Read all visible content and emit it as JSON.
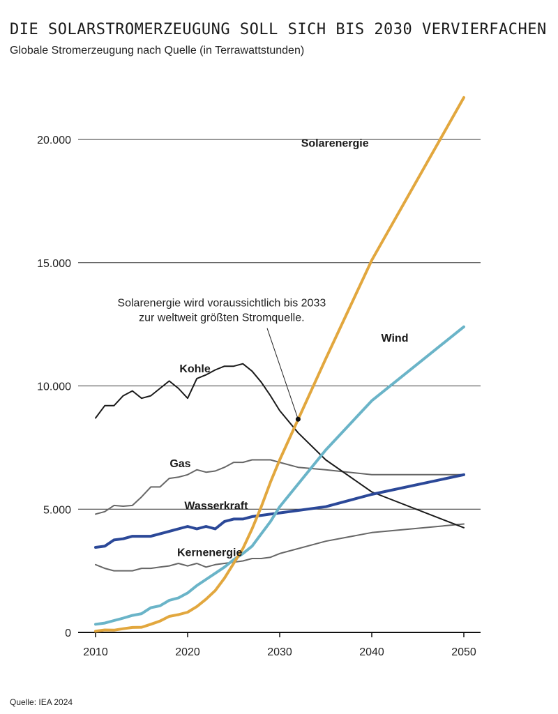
{
  "header": {
    "title": "DIE SOLARSTROMERZEUGUNG SOLL SICH BIS 2030 VERVIERFACHEN",
    "subtitle": "Globale Stromerzeugung nach Quelle (in Terrawattstunden)"
  },
  "footer": {
    "source": "Quelle: IEA 2024"
  },
  "chart_data": {
    "type": "line",
    "title": "DIE SOLARSTROMERZEUGUNG SOLL SICH BIS 2030 VERVIERFACHEN",
    "subtitle": "Globale Stromerzeugung nach Quelle (in Terrawattstunden)",
    "xlabel": "",
    "ylabel": "",
    "xlim": [
      2010,
      2050
    ],
    "ylim": [
      0,
      22000
    ],
    "x_ticks": [
      2010,
      2020,
      2030,
      2040,
      2050
    ],
    "y_ticks": [
      0,
      5000,
      10000,
      15000,
      20000
    ],
    "y_tick_labels": [
      "0",
      "5.000",
      "10.000",
      "15.000",
      "20.000"
    ],
    "grid": "horizontal",
    "series": [
      {
        "name": "Solarenergie",
        "color": "#E2A73E",
        "width": 4,
        "points": [
          [
            2010,
            50
          ],
          [
            2011,
            100
          ],
          [
            2012,
            90
          ],
          [
            2013,
            150
          ],
          [
            2014,
            200
          ],
          [
            2015,
            210
          ],
          [
            2016,
            330
          ],
          [
            2017,
            460
          ],
          [
            2018,
            650
          ],
          [
            2019,
            720
          ],
          [
            2020,
            820
          ],
          [
            2021,
            1050
          ],
          [
            2022,
            1350
          ],
          [
            2023,
            1700
          ],
          [
            2024,
            2200
          ],
          [
            2025,
            2800
          ],
          [
            2026,
            3400
          ],
          [
            2027,
            4200
          ],
          [
            2028,
            5100
          ],
          [
            2029,
            6100
          ],
          [
            2030,
            7000
          ],
          [
            2035,
            11100
          ],
          [
            2040,
            15100
          ],
          [
            2050,
            21700
          ]
        ]
      },
      {
        "name": "Wind",
        "color": "#6AB4C8",
        "width": 4,
        "points": [
          [
            2010,
            330
          ],
          [
            2011,
            380
          ],
          [
            2012,
            480
          ],
          [
            2013,
            580
          ],
          [
            2014,
            690
          ],
          [
            2015,
            760
          ],
          [
            2016,
            1000
          ],
          [
            2017,
            1080
          ],
          [
            2018,
            1300
          ],
          [
            2019,
            1400
          ],
          [
            2020,
            1600
          ],
          [
            2021,
            1900
          ],
          [
            2022,
            2150
          ],
          [
            2023,
            2400
          ],
          [
            2024,
            2650
          ],
          [
            2025,
            2950
          ],
          [
            2026,
            3200
          ],
          [
            2027,
            3500
          ],
          [
            2028,
            4000
          ],
          [
            2029,
            4500
          ],
          [
            2030,
            5100
          ],
          [
            2035,
            7400
          ],
          [
            2040,
            9400
          ],
          [
            2050,
            12400
          ]
        ]
      },
      {
        "name": "Kohle",
        "color": "#1a1a1a",
        "width": 2,
        "points": [
          [
            2010,
            8700
          ],
          [
            2011,
            9200
          ],
          [
            2012,
            9200
          ],
          [
            2013,
            9600
          ],
          [
            2014,
            9800
          ],
          [
            2015,
            9500
          ],
          [
            2016,
            9600
          ],
          [
            2017,
            9900
          ],
          [
            2018,
            10200
          ],
          [
            2019,
            9900
          ],
          [
            2020,
            9500
          ],
          [
            2021,
            10300
          ],
          [
            2022,
            10450
          ],
          [
            2023,
            10650
          ],
          [
            2024,
            10800
          ],
          [
            2025,
            10800
          ],
          [
            2026,
            10900
          ],
          [
            2027,
            10600
          ],
          [
            2028,
            10150
          ],
          [
            2029,
            9600
          ],
          [
            2030,
            9000
          ],
          [
            2032,
            8100
          ],
          [
            2035,
            7000
          ],
          [
            2040,
            5700
          ],
          [
            2050,
            4250
          ]
        ]
      },
      {
        "name": "Gas",
        "color": "#666666",
        "width": 2,
        "points": [
          [
            2010,
            4800
          ],
          [
            2011,
            4900
          ],
          [
            2012,
            5150
          ],
          [
            2013,
            5120
          ],
          [
            2014,
            5150
          ],
          [
            2015,
            5500
          ],
          [
            2016,
            5900
          ],
          [
            2017,
            5900
          ],
          [
            2018,
            6250
          ],
          [
            2019,
            6300
          ],
          [
            2020,
            6400
          ],
          [
            2021,
            6600
          ],
          [
            2022,
            6500
          ],
          [
            2023,
            6550
          ],
          [
            2024,
            6700
          ],
          [
            2025,
            6900
          ],
          [
            2026,
            6900
          ],
          [
            2027,
            7000
          ],
          [
            2028,
            7000
          ],
          [
            2029,
            7000
          ],
          [
            2030,
            6900
          ],
          [
            2032,
            6700
          ],
          [
            2035,
            6600
          ],
          [
            2040,
            6400
          ],
          [
            2050,
            6400
          ]
        ]
      },
      {
        "name": "Wasserkraft",
        "color": "#2B4898",
        "width": 4,
        "points": [
          [
            2010,
            3450
          ],
          [
            2011,
            3500
          ],
          [
            2012,
            3750
          ],
          [
            2013,
            3800
          ],
          [
            2014,
            3900
          ],
          [
            2015,
            3900
          ],
          [
            2016,
            3900
          ],
          [
            2017,
            4000
          ],
          [
            2018,
            4100
          ],
          [
            2019,
            4200
          ],
          [
            2020,
            4300
          ],
          [
            2021,
            4200
          ],
          [
            2022,
            4300
          ],
          [
            2023,
            4200
          ],
          [
            2024,
            4500
          ],
          [
            2025,
            4600
          ],
          [
            2026,
            4600
          ],
          [
            2027,
            4700
          ],
          [
            2028,
            4750
          ],
          [
            2029,
            4800
          ],
          [
            2030,
            4850
          ],
          [
            2035,
            5100
          ],
          [
            2040,
            5600
          ],
          [
            2050,
            6400
          ]
        ]
      },
      {
        "name": "Kernenergie",
        "color": "#666666",
        "width": 2,
        "points": [
          [
            2010,
            2750
          ],
          [
            2011,
            2600
          ],
          [
            2012,
            2500
          ],
          [
            2013,
            2500
          ],
          [
            2014,
            2500
          ],
          [
            2015,
            2600
          ],
          [
            2016,
            2600
          ],
          [
            2017,
            2650
          ],
          [
            2018,
            2700
          ],
          [
            2019,
            2800
          ],
          [
            2020,
            2700
          ],
          [
            2021,
            2800
          ],
          [
            2022,
            2650
          ],
          [
            2023,
            2750
          ],
          [
            2024,
            2800
          ],
          [
            2025,
            2850
          ],
          [
            2026,
            2900
          ],
          [
            2027,
            3000
          ],
          [
            2028,
            3000
          ],
          [
            2029,
            3050
          ],
          [
            2030,
            3200
          ],
          [
            2035,
            3700
          ],
          [
            2040,
            4050
          ],
          [
            2050,
            4400
          ]
        ]
      }
    ],
    "series_labels": [
      {
        "name": "Solarenergie",
        "x": 2036,
        "y": 19700
      },
      {
        "name": "Wind",
        "x": 2042.5,
        "y": 11800
      },
      {
        "name": "Kohle",
        "x": 2020.8,
        "y": 10550
      },
      {
        "name": "Gas",
        "x": 2019.2,
        "y": 6700
      },
      {
        "name": "Wasserkraft",
        "x": 2023.1,
        "y": 5000
      },
      {
        "name": "Kernenergie",
        "x": 2022.4,
        "y": 3100
      }
    ],
    "annotations": [
      {
        "lines": [
          "Solarenergie wird voraussichtlich bis 2033",
          "zur weltweit größten Stromquelle."
        ],
        "text_anchor_xy": [
          2023.7,
          13220
        ],
        "point": [
          2032,
          8650
        ]
      }
    ]
  }
}
